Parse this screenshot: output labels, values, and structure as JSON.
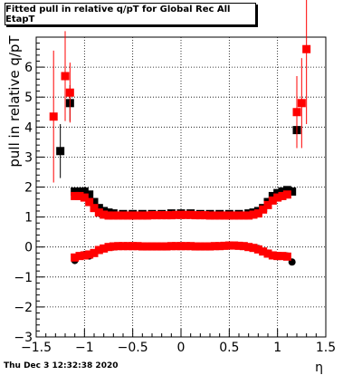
{
  "chart_data": {
    "type": "scatter",
    "title": "Fitted pull in relative q/pT for Global Rec All EtapT",
    "xlabel": "η",
    "ylabel": "pull in relative q/pT",
    "xlim": [
      -1.5,
      1.5
    ],
    "ylim": [
      -3,
      7
    ],
    "xticks": [
      "−1.5",
      "−1",
      "−0.5",
      "0",
      "0.5",
      "1",
      "1.5"
    ],
    "yticks": [
      "−3",
      "−2",
      "−1",
      "0",
      "1",
      "2",
      "3",
      "4",
      "5",
      "6"
    ],
    "grid": true,
    "colors": {
      "black_series": "#000000",
      "red_series": "#ff0000"
    },
    "series": [
      {
        "color": "black",
        "points": [
          {
            "x": -1.25,
            "y": 3.2,
            "err": 0.9
          },
          {
            "x": -1.15,
            "y": 4.8,
            "err": 0.6
          },
          {
            "x": -1.1,
            "y": 1.85
          },
          {
            "x": -1.05,
            "y": 1.85
          },
          {
            "x": -1.0,
            "y": 1.85
          },
          {
            "x": -0.95,
            "y": 1.75
          },
          {
            "x": -0.9,
            "y": 1.5
          },
          {
            "x": -0.85,
            "y": 1.3
          },
          {
            "x": -0.8,
            "y": 1.2
          },
          {
            "x": -0.75,
            "y": 1.15
          },
          {
            "x": -0.7,
            "y": 1.12
          },
          {
            "x": -0.6,
            "y": 1.1
          },
          {
            "x": -0.5,
            "y": 1.1
          },
          {
            "x": -0.4,
            "y": 1.1
          },
          {
            "x": -0.3,
            "y": 1.1
          },
          {
            "x": -0.2,
            "y": 1.1
          },
          {
            "x": -0.1,
            "y": 1.12
          },
          {
            "x": 0.0,
            "y": 1.12
          },
          {
            "x": 0.1,
            "y": 1.12
          },
          {
            "x": 0.2,
            "y": 1.1
          },
          {
            "x": 0.3,
            "y": 1.1
          },
          {
            "x": 0.4,
            "y": 1.1
          },
          {
            "x": 0.5,
            "y": 1.1
          },
          {
            "x": 0.6,
            "y": 1.1
          },
          {
            "x": 0.7,
            "y": 1.12
          },
          {
            "x": 0.75,
            "y": 1.15
          },
          {
            "x": 0.8,
            "y": 1.2
          },
          {
            "x": 0.85,
            "y": 1.3
          },
          {
            "x": 0.9,
            "y": 1.5
          },
          {
            "x": 0.95,
            "y": 1.7
          },
          {
            "x": 1.0,
            "y": 1.8
          },
          {
            "x": 1.05,
            "y": 1.85
          },
          {
            "x": 1.1,
            "y": 1.9
          },
          {
            "x": 1.15,
            "y": 1.85
          },
          {
            "x": 1.2,
            "y": 3.9,
            "err": 0.6
          },
          {
            "x": -1.1,
            "y": -0.45,
            "marker": "circle"
          },
          {
            "x": -1.05,
            "y": -0.3,
            "marker": "circle"
          },
          {
            "x": -1.0,
            "y": -0.25,
            "marker": "circle"
          },
          {
            "x": -0.95,
            "y": -0.3,
            "marker": "circle"
          },
          {
            "x": -0.9,
            "y": -0.2,
            "marker": "circle"
          },
          {
            "x": -0.85,
            "y": -0.1,
            "marker": "circle"
          },
          {
            "x": -0.8,
            "y": -0.05,
            "marker": "circle"
          },
          {
            "x": -0.7,
            "y": 0.0,
            "marker": "circle"
          },
          {
            "x": -0.5,
            "y": 0.02,
            "marker": "circle"
          },
          {
            "x": -0.3,
            "y": 0.03,
            "marker": "circle"
          },
          {
            "x": 0.0,
            "y": 0.03,
            "marker": "circle"
          },
          {
            "x": 0.3,
            "y": 0.03,
            "marker": "circle"
          },
          {
            "x": 0.5,
            "y": 0.05,
            "marker": "circle"
          },
          {
            "x": 0.7,
            "y": 0.0,
            "marker": "circle"
          },
          {
            "x": 0.8,
            "y": -0.05,
            "marker": "circle"
          },
          {
            "x": 0.9,
            "y": -0.2,
            "marker": "circle"
          },
          {
            "x": 1.0,
            "y": -0.3,
            "marker": "circle"
          },
          {
            "x": 1.1,
            "y": -0.3,
            "marker": "circle"
          },
          {
            "x": 1.15,
            "y": -0.5,
            "marker": "circle"
          }
        ]
      },
      {
        "color": "red",
        "points": [
          {
            "x": -1.32,
            "y": 4.35,
            "err": 2.2
          },
          {
            "x": -1.2,
            "y": 5.7,
            "err": 1.5
          },
          {
            "x": -1.15,
            "y": 5.15,
            "err": 1.0
          },
          {
            "x": -1.1,
            "y": 1.7
          },
          {
            "x": -1.05,
            "y": 1.7
          },
          {
            "x": -1.0,
            "y": 1.65
          },
          {
            "x": -0.95,
            "y": 1.5
          },
          {
            "x": -0.9,
            "y": 1.3
          },
          {
            "x": -0.85,
            "y": 1.15
          },
          {
            "x": -0.8,
            "y": 1.08
          },
          {
            "x": -0.75,
            "y": 1.05
          },
          {
            "x": -0.7,
            "y": 1.05
          },
          {
            "x": -0.65,
            "y": 1.05
          },
          {
            "x": -0.6,
            "y": 1.05
          },
          {
            "x": -0.55,
            "y": 1.05
          },
          {
            "x": -0.5,
            "y": 1.05
          },
          {
            "x": -0.45,
            "y": 1.05
          },
          {
            "x": -0.4,
            "y": 1.05
          },
          {
            "x": -0.35,
            "y": 1.05
          },
          {
            "x": -0.3,
            "y": 1.06
          },
          {
            "x": -0.25,
            "y": 1.06
          },
          {
            "x": -0.2,
            "y": 1.06
          },
          {
            "x": -0.15,
            "y": 1.06
          },
          {
            "x": -0.1,
            "y": 1.06
          },
          {
            "x": -0.05,
            "y": 1.07
          },
          {
            "x": 0.0,
            "y": 1.07
          },
          {
            "x": 0.05,
            "y": 1.07
          },
          {
            "x": 0.1,
            "y": 1.07
          },
          {
            "x": 0.15,
            "y": 1.06
          },
          {
            "x": 0.2,
            "y": 1.06
          },
          {
            "x": 0.25,
            "y": 1.06
          },
          {
            "x": 0.3,
            "y": 1.05
          },
          {
            "x": 0.35,
            "y": 1.05
          },
          {
            "x": 0.4,
            "y": 1.05
          },
          {
            "x": 0.45,
            "y": 1.05
          },
          {
            "x": 0.5,
            "y": 1.05
          },
          {
            "x": 0.55,
            "y": 1.05
          },
          {
            "x": 0.6,
            "y": 1.05
          },
          {
            "x": 0.65,
            "y": 1.05
          },
          {
            "x": 0.7,
            "y": 1.05
          },
          {
            "x": 0.75,
            "y": 1.08
          },
          {
            "x": 0.8,
            "y": 1.12
          },
          {
            "x": 0.85,
            "y": 1.25
          },
          {
            "x": 0.9,
            "y": 1.4
          },
          {
            "x": 0.95,
            "y": 1.55
          },
          {
            "x": 1.0,
            "y": 1.65
          },
          {
            "x": 1.05,
            "y": 1.7
          },
          {
            "x": 1.1,
            "y": 1.75
          },
          {
            "x": 1.2,
            "y": 4.5,
            "err": 1.2
          },
          {
            "x": 1.25,
            "y": 4.8,
            "err": 1.5
          },
          {
            "x": 1.3,
            "y": 6.6,
            "err": 2.5
          },
          {
            "x": -1.1,
            "y": -0.35
          },
          {
            "x": -1.05,
            "y": -0.3
          },
          {
            "x": -1.0,
            "y": -0.28
          },
          {
            "x": -0.95,
            "y": -0.25
          },
          {
            "x": -0.9,
            "y": -0.2
          },
          {
            "x": -0.85,
            "y": -0.1
          },
          {
            "x": -0.8,
            "y": -0.05
          },
          {
            "x": -0.75,
            "y": 0.0
          },
          {
            "x": -0.7,
            "y": 0.02
          },
          {
            "x": -0.65,
            "y": 0.03
          },
          {
            "x": -0.6,
            "y": 0.03
          },
          {
            "x": -0.55,
            "y": 0.03
          },
          {
            "x": -0.5,
            "y": 0.03
          },
          {
            "x": -0.45,
            "y": 0.03
          },
          {
            "x": -0.4,
            "y": 0.02
          },
          {
            "x": -0.35,
            "y": 0.02
          },
          {
            "x": -0.3,
            "y": 0.02
          },
          {
            "x": -0.25,
            "y": 0.02
          },
          {
            "x": -0.2,
            "y": 0.02
          },
          {
            "x": -0.15,
            "y": 0.02
          },
          {
            "x": -0.1,
            "y": 0.03
          },
          {
            "x": -0.05,
            "y": 0.03
          },
          {
            "x": 0.0,
            "y": 0.03
          },
          {
            "x": 0.05,
            "y": 0.03
          },
          {
            "x": 0.1,
            "y": 0.03
          },
          {
            "x": 0.15,
            "y": 0.02
          },
          {
            "x": 0.2,
            "y": 0.02
          },
          {
            "x": 0.25,
            "y": 0.02
          },
          {
            "x": 0.3,
            "y": 0.02
          },
          {
            "x": 0.35,
            "y": 0.03
          },
          {
            "x": 0.4,
            "y": 0.03
          },
          {
            "x": 0.45,
            "y": 0.04
          },
          {
            "x": 0.5,
            "y": 0.05
          },
          {
            "x": 0.55,
            "y": 0.05
          },
          {
            "x": 0.6,
            "y": 0.04
          },
          {
            "x": 0.65,
            "y": 0.03
          },
          {
            "x": 0.7,
            "y": 0.0
          },
          {
            "x": 0.75,
            "y": -0.03
          },
          {
            "x": 0.8,
            "y": -0.08
          },
          {
            "x": 0.85,
            "y": -0.15
          },
          {
            "x": 0.9,
            "y": -0.22
          },
          {
            "x": 0.95,
            "y": -0.28
          },
          {
            "x": 1.0,
            "y": -0.3
          },
          {
            "x": 1.05,
            "y": -0.3
          },
          {
            "x": 1.1,
            "y": -0.32
          }
        ]
      }
    ]
  },
  "footer": {
    "date": "Thu Dec  3 12:32:38 2020"
  }
}
